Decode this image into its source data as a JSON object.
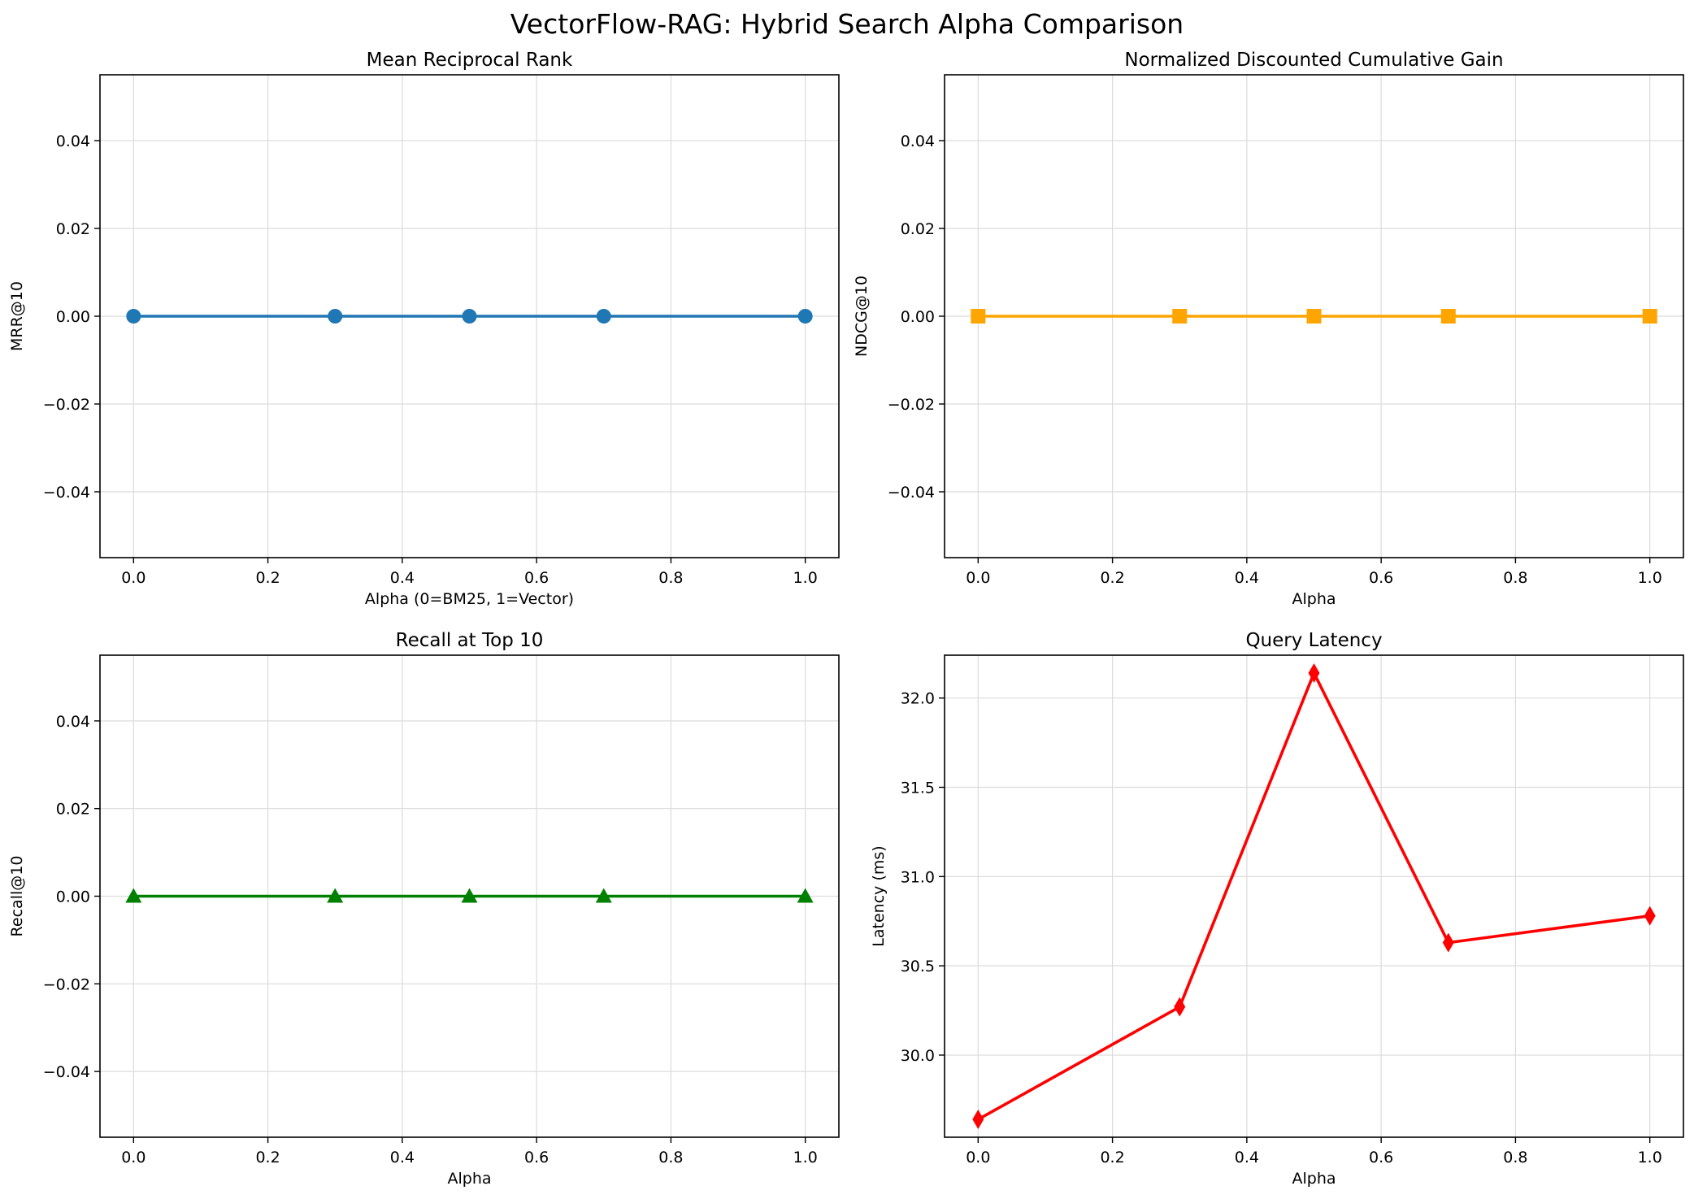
{
  "figure": {
    "title": "VectorFlow-RAG: Hybrid Search Alpha Comparison"
  },
  "chart_data": [
    {
      "type": "line",
      "title": "Mean Reciprocal Rank",
      "xlabel": "Alpha (0=BM25, 1=Vector)",
      "ylabel": "MRR@10",
      "x": [
        0.0,
        0.3,
        0.5,
        0.7,
        1.0
      ],
      "series": [
        {
          "values": [
            0.0,
            0.0,
            0.0,
            0.0,
            0.0
          ],
          "color": "#1f77b4",
          "marker": "circle"
        }
      ],
      "xlim": [
        -0.05,
        1.05
      ],
      "ylim": [
        -0.055,
        0.055
      ],
      "xticks": [
        "0.0",
        "0.2",
        "0.4",
        "0.6",
        "0.8",
        "1.0"
      ],
      "yticks": [
        "−0.04",
        "−0.02",
        "0.00",
        "0.02",
        "0.04"
      ],
      "grid": true
    },
    {
      "type": "line",
      "title": "Normalized Discounted Cumulative Gain",
      "xlabel": "Alpha",
      "ylabel": "NDCG@10",
      "x": [
        0.0,
        0.3,
        0.5,
        0.7,
        1.0
      ],
      "series": [
        {
          "values": [
            0.0,
            0.0,
            0.0,
            0.0,
            0.0
          ],
          "color": "#ffa500",
          "marker": "square"
        }
      ],
      "xlim": [
        -0.05,
        1.05
      ],
      "ylim": [
        -0.055,
        0.055
      ],
      "xticks": [
        "0.0",
        "0.2",
        "0.4",
        "0.6",
        "0.8",
        "1.0"
      ],
      "yticks": [
        "−0.04",
        "−0.02",
        "0.00",
        "0.02",
        "0.04"
      ],
      "grid": true
    },
    {
      "type": "line",
      "title": "Recall at Top 10",
      "xlabel": "Alpha",
      "ylabel": "Recall@10",
      "x": [
        0.0,
        0.3,
        0.5,
        0.7,
        1.0
      ],
      "series": [
        {
          "values": [
            0.0,
            0.0,
            0.0,
            0.0,
            0.0
          ],
          "color": "#008000",
          "marker": "triangle"
        }
      ],
      "xlim": [
        -0.05,
        1.05
      ],
      "ylim": [
        -0.055,
        0.055
      ],
      "xticks": [
        "0.0",
        "0.2",
        "0.4",
        "0.6",
        "0.8",
        "1.0"
      ],
      "yticks": [
        "−0.04",
        "−0.02",
        "0.00",
        "0.02",
        "0.04"
      ],
      "grid": true
    },
    {
      "type": "line",
      "title": "Query Latency",
      "xlabel": "Alpha",
      "ylabel": "Latency (ms)",
      "x": [
        0.0,
        0.3,
        0.5,
        0.7,
        1.0
      ],
      "series": [
        {
          "values": [
            29.64,
            30.27,
            32.14,
            30.63,
            30.78
          ],
          "color": "#ff0000",
          "marker": "diamond"
        }
      ],
      "xlim": [
        -0.05,
        1.05
      ],
      "ylim": [
        29.54,
        32.24
      ],
      "xticks": [
        "0.0",
        "0.2",
        "0.4",
        "0.6",
        "0.8",
        "1.0"
      ],
      "yticks": [
        "30.0",
        "30.5",
        "31.0",
        "31.5",
        "32.0"
      ],
      "grid": true
    }
  ]
}
